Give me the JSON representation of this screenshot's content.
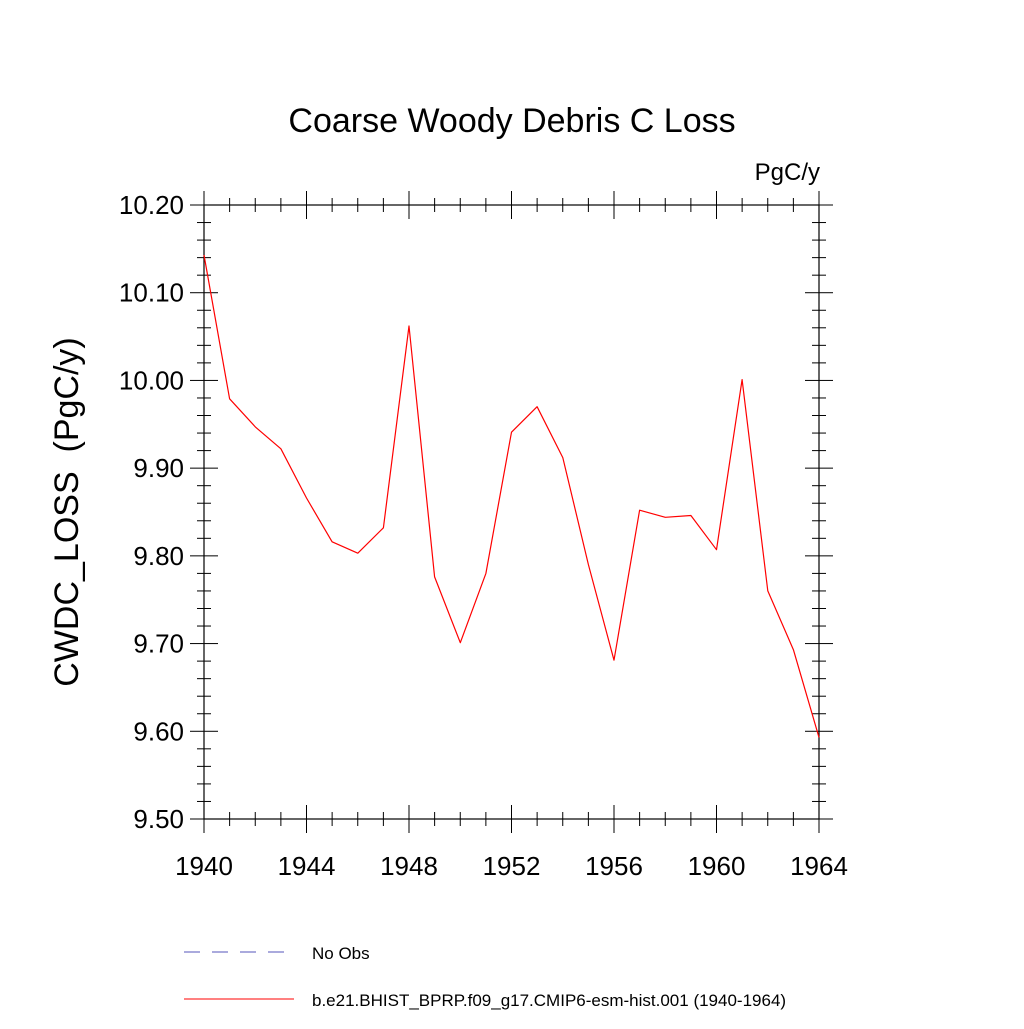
{
  "chart_data": {
    "type": "line",
    "title": "Coarse Woody Debris C Loss",
    "units_label": "PgC/y",
    "ylabel": "CWDC_LOSS  (PgC/y)",
    "xlabel": "",
    "xlim": [
      1940,
      1964
    ],
    "ylim": [
      9.5,
      10.2
    ],
    "xticks": [
      1940,
      1944,
      1948,
      1952,
      1956,
      1960,
      1964
    ],
    "yticks": [
      "10.20",
      "10.10",
      "10.00",
      "9.90",
      "9.80",
      "9.70",
      "9.60",
      "9.50"
    ],
    "ytick_values": [
      10.2,
      10.1,
      10.0,
      9.9,
      9.8,
      9.7,
      9.6,
      9.5
    ],
    "series": [
      {
        "name": "b.e21.BHIST_BPRP.f09_g17.CMIP6-esm-hist.001 (1940-1964)",
        "color": "#ff0000",
        "style": "solid",
        "x": [
          1940,
          1941,
          1942,
          1943,
          1944,
          1945,
          1946,
          1947,
          1948,
          1949,
          1950,
          1951,
          1952,
          1953,
          1954,
          1955,
          1956,
          1957,
          1958,
          1959,
          1960,
          1961,
          1962,
          1963,
          1964
        ],
        "values": [
          10.143,
          9.979,
          9.947,
          9.922,
          9.866,
          9.816,
          9.803,
          9.832,
          10.062,
          9.776,
          9.701,
          9.78,
          9.941,
          9.97,
          9.912,
          9.79,
          9.681,
          9.852,
          9.844,
          9.846,
          9.807,
          10.001,
          9.76,
          9.693,
          9.593
        ]
      }
    ],
    "legend": [
      {
        "label": "No Obs",
        "color": "#5555bb",
        "style": "dashed"
      },
      {
        "label": "b.e21.BHIST_BPRP.f09_g17.CMIP6-esm-hist.001 (1940-1964)",
        "color": "#ff0000",
        "style": "solid"
      }
    ]
  }
}
